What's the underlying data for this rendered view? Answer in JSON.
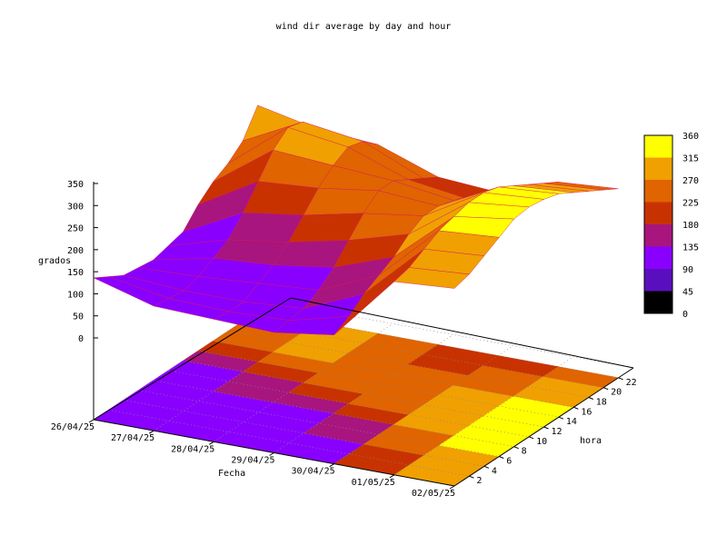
{
  "chart_data": {
    "type": "surface3d",
    "title": "wind dir average by day and hour",
    "xlabel": "Fecha",
    "ylabel": "hora",
    "zlabel": "grados",
    "x_ticks": [
      "26/04/25",
      "27/04/25",
      "28/04/25",
      "29/04/25",
      "30/04/25",
      "01/05/25",
      "02/05/25"
    ],
    "y_ticks": [
      "2",
      "4",
      "6",
      "8",
      "10",
      "12",
      "14",
      "16",
      "18",
      "20",
      "22"
    ],
    "z_ticks": [
      "0",
      "50",
      "100",
      "150",
      "200",
      "250",
      "300",
      "350"
    ],
    "zlim": [
      0,
      360
    ],
    "colorbar": {
      "ticks": [
        "0",
        "45",
        "90",
        "135",
        "180",
        "225",
        "270",
        "315",
        "360"
      ],
      "colors": [
        "#000000",
        "#5a0fbe",
        "#8a00ff",
        "#a8157e",
        "#c83200",
        "#e06400",
        "#f0a000",
        "#ffff00"
      ]
    },
    "hours": [
      0,
      2,
      4,
      6,
      8,
      10,
      12,
      14,
      16,
      18,
      20,
      22
    ],
    "days": [
      "26/04/25",
      "27/04/25",
      "28/04/25",
      "29/04/25",
      "30/04/25",
      "01/05/25",
      "02/05/25"
    ],
    "z": [
      [
        140,
        120,
        100,
        95,
        90,
        100,
        110,
        150,
        180,
        200,
        230,
        290
      ],
      [
        100,
        95,
        90,
        100,
        120,
        140,
        180,
        230,
        280,
        310,
        300,
        260
      ],
      [
        95,
        90,
        90,
        110,
        130,
        160,
        200,
        240,
        270,
        290,
        280,
        250
      ],
      [
        90,
        95,
        100,
        120,
        150,
        190,
        230,
        260,
        260,
        240,
        220,
        200
      ],
      [
        110,
        130,
        160,
        180,
        200,
        230,
        250,
        250,
        240,
        220,
        200,
        190
      ],
      [
        260,
        270,
        290,
        310,
        320,
        330,
        330,
        320,
        300,
        280,
        260,
        240
      ],
      [
        270,
        280,
        300,
        320,
        340,
        345,
        340,
        330,
        310,
        290,
        270,
        250
      ]
    ],
    "grid": true
  }
}
